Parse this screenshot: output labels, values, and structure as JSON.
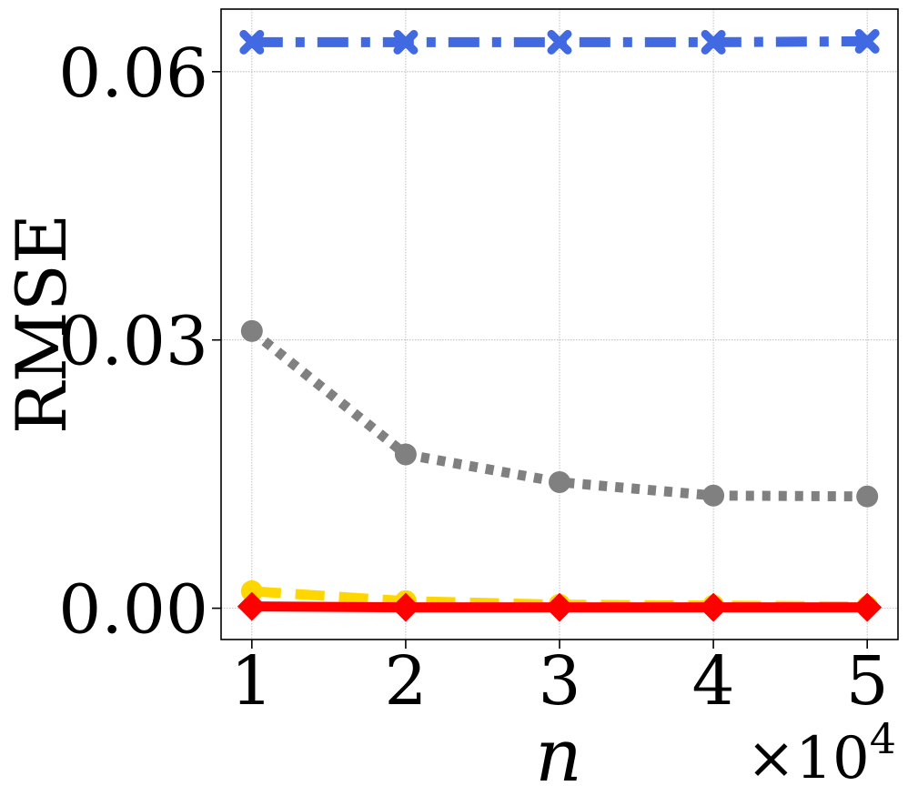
{
  "chart_data": {
    "type": "line",
    "title": "",
    "xlabel": "n",
    "ylabel": "RMSE",
    "x_multiplier_label": "×10",
    "x_multiplier_exponent": "4",
    "x": [
      1,
      2,
      3,
      4,
      5
    ],
    "xlim": [
      0.8,
      5.2
    ],
    "ylim": [
      -0.0035,
      0.067
    ],
    "x_tick_values": [
      1,
      2,
      3,
      4,
      5
    ],
    "x_tick_labels": [
      "1",
      "2",
      "3",
      "4",
      "5"
    ],
    "y_tick_values": [
      0.0,
      0.03,
      0.06
    ],
    "y_tick_labels": [
      "0.00",
      "0.03",
      "0.06"
    ],
    "grid": true,
    "legend": "none",
    "series": [
      {
        "color": "#4169e1",
        "line_style": "dashdot",
        "marker": "x",
        "values": [
          0.0633,
          0.0633,
          0.0633,
          0.0633,
          0.0634
        ]
      },
      {
        "color": "#808080",
        "line_style": "dotted",
        "marker": "circle",
        "values": [
          0.031,
          0.0172,
          0.0141,
          0.0126,
          0.0125
        ]
      },
      {
        "color": "#ffd700",
        "line_style": "dashed",
        "marker": "circle",
        "values": [
          0.0019,
          0.0008,
          0.0004,
          0.0003,
          0.0002
        ]
      },
      {
        "color": "#ff0000",
        "line_style": "solid",
        "marker": "diamond",
        "values": [
          0.0002,
          0.0001,
          0.0001,
          0.0001,
          0.0001
        ]
      }
    ]
  }
}
